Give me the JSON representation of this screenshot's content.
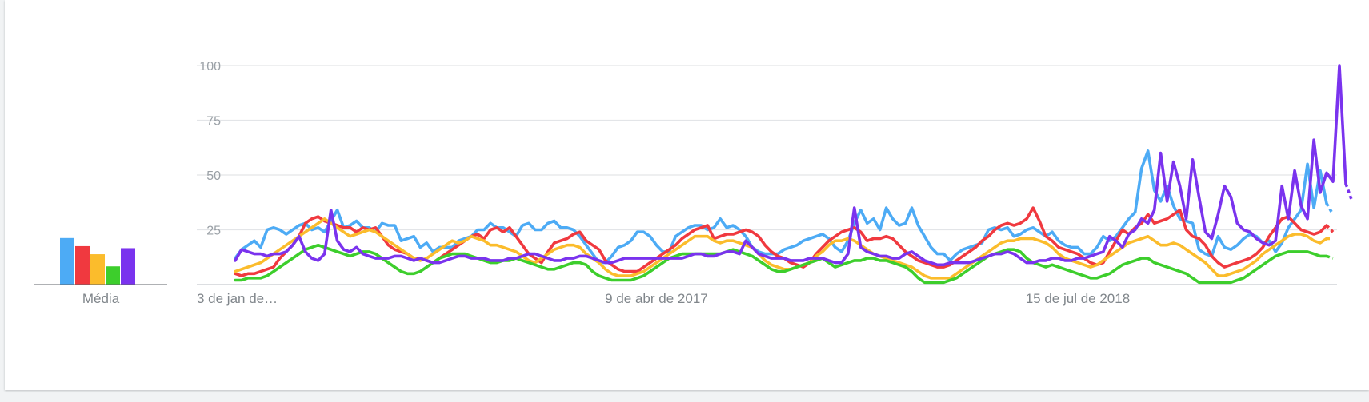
{
  "chart_data": {
    "type": "line",
    "y_ticks": [
      "100",
      "75",
      "50",
      "25"
    ],
    "ylim": [
      0,
      100
    ],
    "x_tick_labels": [
      "3 de jan de…",
      "9 de abr de 2017",
      "15 de jul de 2018"
    ],
    "x_tick_index": [
      0,
      66,
      132
    ],
    "grid": true,
    "average_label": "Média",
    "average_chart": {
      "type": "bar",
      "values": [
        23,
        19,
        15,
        9,
        18
      ]
    },
    "series": [
      {
        "color": "#4dabf5",
        "values": [
          12,
          16,
          18,
          20,
          17,
          25,
          26,
          25,
          23,
          25,
          27,
          28,
          25,
          26,
          24,
          29,
          34,
          26,
          27,
          29,
          26,
          26,
          24,
          28,
          27,
          27,
          20,
          21,
          22,
          17,
          19,
          15,
          17,
          17,
          17,
          20,
          21,
          22,
          25,
          25,
          28,
          26,
          26,
          24,
          22,
          27,
          28,
          25,
          25,
          28,
          29,
          26,
          26,
          25,
          22,
          18,
          14,
          10,
          10,
          13,
          17,
          18,
          20,
          24,
          24,
          22,
          18,
          15,
          15,
          22,
          24,
          26,
          27,
          27,
          25,
          26,
          30,
          26,
          27,
          25,
          22,
          17,
          15,
          14,
          14,
          14,
          16,
          17,
          18,
          20,
          21,
          22,
          23,
          21,
          17,
          15,
          20,
          28,
          34,
          28,
          30,
          25,
          35,
          30,
          27,
          28,
          35,
          27,
          22,
          17,
          14,
          14,
          11,
          14,
          16,
          17,
          18,
          19,
          25,
          26,
          25,
          26,
          22,
          23,
          25,
          26,
          24,
          22,
          24,
          20,
          18,
          17,
          17,
          14,
          14,
          17,
          22,
          20,
          22,
          26,
          30,
          33,
          53,
          61,
          43,
          38,
          45,
          36,
          30,
          29,
          28,
          16,
          14,
          13,
          22,
          17,
          16,
          18,
          21,
          23,
          22,
          19,
          20,
          15,
          19,
          26,
          30,
          34,
          55,
          35,
          52,
          37,
          32
        ]
      },
      {
        "color": "#f0393f",
        "values": [
          5,
          4,
          5,
          5,
          6,
          7,
          8,
          12,
          15,
          18,
          22,
          28,
          30,
          31,
          29,
          28,
          27,
          26,
          26,
          24,
          26,
          25,
          26,
          22,
          18,
          16,
          15,
          14,
          12,
          12,
          11,
          10,
          12,
          14,
          16,
          18,
          20,
          22,
          23,
          21,
          25,
          26,
          24,
          26,
          22,
          18,
          14,
          12,
          10,
          15,
          19,
          20,
          21,
          23,
          24,
          20,
          18,
          16,
          11,
          9,
          7,
          6,
          6,
          6,
          8,
          10,
          12,
          14,
          16,
          18,
          21,
          23,
          25,
          26,
          27,
          21,
          22,
          23,
          23,
          24,
          25,
          24,
          22,
          18,
          15,
          13,
          12,
          10,
          9,
          8,
          10,
          14,
          17,
          20,
          22,
          24,
          25,
          26,
          24,
          20,
          21,
          21,
          22,
          21,
          18,
          15,
          13,
          11,
          10,
          9,
          8,
          8,
          9,
          11,
          13,
          15,
          17,
          20,
          22,
          25,
          27,
          28,
          27,
          28,
          30,
          35,
          29,
          22,
          20,
          17,
          16,
          15,
          14,
          12,
          10,
          9,
          10,
          15,
          20,
          25,
          23,
          26,
          28,
          32,
          28,
          29,
          30,
          32,
          34,
          25,
          22,
          21,
          18,
          13,
          10,
          8,
          9,
          10,
          11,
          12,
          14,
          17,
          22,
          26,
          30,
          31,
          28,
          25,
          24,
          23,
          24,
          27,
          24
        ]
      },
      {
        "color": "#fbbc2c",
        "values": [
          6,
          7,
          8,
          9,
          10,
          12,
          14,
          16,
          18,
          20,
          22,
          24,
          26,
          28,
          30,
          28,
          26,
          24,
          22,
          23,
          24,
          25,
          24,
          22,
          20,
          18,
          16,
          14,
          12,
          11,
          12,
          14,
          16,
          18,
          20,
          19,
          20,
          22,
          21,
          20,
          18,
          18,
          17,
          16,
          15,
          13,
          11,
          10,
          12,
          14,
          16,
          17,
          18,
          18,
          17,
          14,
          12,
          10,
          7,
          5,
          4,
          4,
          4,
          5,
          6,
          8,
          10,
          12,
          14,
          16,
          18,
          20,
          22,
          22,
          22,
          20,
          19,
          20,
          20,
          19,
          18,
          17,
          14,
          11,
          9,
          8,
          7,
          7,
          8,
          9,
          10,
          13,
          15,
          18,
          20,
          20,
          21,
          20,
          18,
          16,
          14,
          13,
          12,
          11,
          10,
          9,
          8,
          6,
          4,
          3,
          3,
          3,
          3,
          5,
          7,
          9,
          11,
          13,
          15,
          17,
          19,
          20,
          20,
          21,
          21,
          21,
          20,
          19,
          17,
          14,
          12,
          11,
          10,
          9,
          8,
          9,
          11,
          13,
          15,
          17,
          19,
          20,
          21,
          22,
          20,
          18,
          18,
          19,
          18,
          16,
          14,
          12,
          10,
          7,
          4,
          4,
          5,
          6,
          7,
          9,
          11,
          14,
          16,
          18,
          20,
          22,
          23,
          23,
          22,
          20,
          19,
          21,
          21
        ]
      },
      {
        "color": "#3dce2c",
        "values": [
          2,
          2,
          3,
          3,
          3,
          4,
          6,
          8,
          10,
          12,
          14,
          16,
          17,
          18,
          17,
          16,
          15,
          14,
          13,
          14,
          15,
          15,
          14,
          12,
          10,
          8,
          6,
          5,
          5,
          6,
          8,
          10,
          12,
          13,
          14,
          14,
          14,
          13,
          12,
          11,
          10,
          10,
          11,
          11,
          12,
          11,
          10,
          9,
          8,
          7,
          7,
          8,
          9,
          10,
          10,
          9,
          6,
          4,
          3,
          2,
          2,
          2,
          2,
          3,
          4,
          6,
          8,
          10,
          12,
          13,
          14,
          14,
          14,
          14,
          14,
          14,
          14,
          15,
          16,
          15,
          14,
          13,
          11,
          9,
          7,
          6,
          6,
          7,
          8,
          9,
          10,
          11,
          12,
          10,
          8,
          9,
          10,
          11,
          11,
          12,
          12,
          11,
          11,
          10,
          9,
          8,
          6,
          3,
          1,
          1,
          1,
          1,
          2,
          3,
          5,
          7,
          9,
          11,
          13,
          14,
          15,
          16,
          16,
          15,
          12,
          10,
          9,
          8,
          9,
          8,
          7,
          6,
          5,
          4,
          3,
          3,
          4,
          5,
          7,
          9,
          10,
          11,
          12,
          12,
          10,
          9,
          8,
          7,
          6,
          5,
          3,
          1,
          1,
          1,
          1,
          1,
          1,
          2,
          3,
          5,
          7,
          9,
          11,
          13,
          14,
          15,
          15,
          15,
          15,
          14,
          13,
          13,
          12
        ]
      },
      {
        "color": "#7a33ee",
        "values": [
          11,
          16,
          15,
          14,
          14,
          13,
          14,
          14,
          15,
          18,
          22,
          15,
          12,
          11,
          14,
          34,
          20,
          16,
          15,
          17,
          14,
          13,
          12,
          12,
          12,
          13,
          13,
          12,
          11,
          12,
          11,
          10,
          10,
          11,
          12,
          13,
          13,
          12,
          12,
          12,
          11,
          11,
          11,
          12,
          12,
          13,
          14,
          14,
          13,
          12,
          11,
          11,
          12,
          12,
          13,
          13,
          12,
          11,
          10,
          10,
          11,
          12,
          12,
          12,
          12,
          12,
          12,
          12,
          12,
          12,
          12,
          13,
          14,
          14,
          13,
          13,
          14,
          15,
          15,
          14,
          20,
          17,
          14,
          13,
          12,
          12,
          12,
          11,
          11,
          11,
          12,
          12,
          12,
          11,
          10,
          10,
          14,
          35,
          17,
          15,
          14,
          13,
          13,
          12,
          12,
          14,
          15,
          13,
          11,
          10,
          9,
          9,
          10,
          10,
          10,
          10,
          11,
          12,
          13,
          14,
          14,
          15,
          14,
          12,
          10,
          10,
          11,
          11,
          12,
          12,
          11,
          11,
          12,
          12,
          13,
          14,
          15,
          22,
          20,
          17,
          23,
          25,
          30,
          28,
          34,
          60,
          38,
          56,
          45,
          30,
          57,
          40,
          24,
          21,
          32,
          45,
          40,
          28,
          25,
          24,
          21,
          19,
          18,
          20,
          45,
          30,
          52,
          36,
          30,
          66,
          42,
          51,
          47,
          100,
          46,
          38
        ]
      }
    ]
  }
}
